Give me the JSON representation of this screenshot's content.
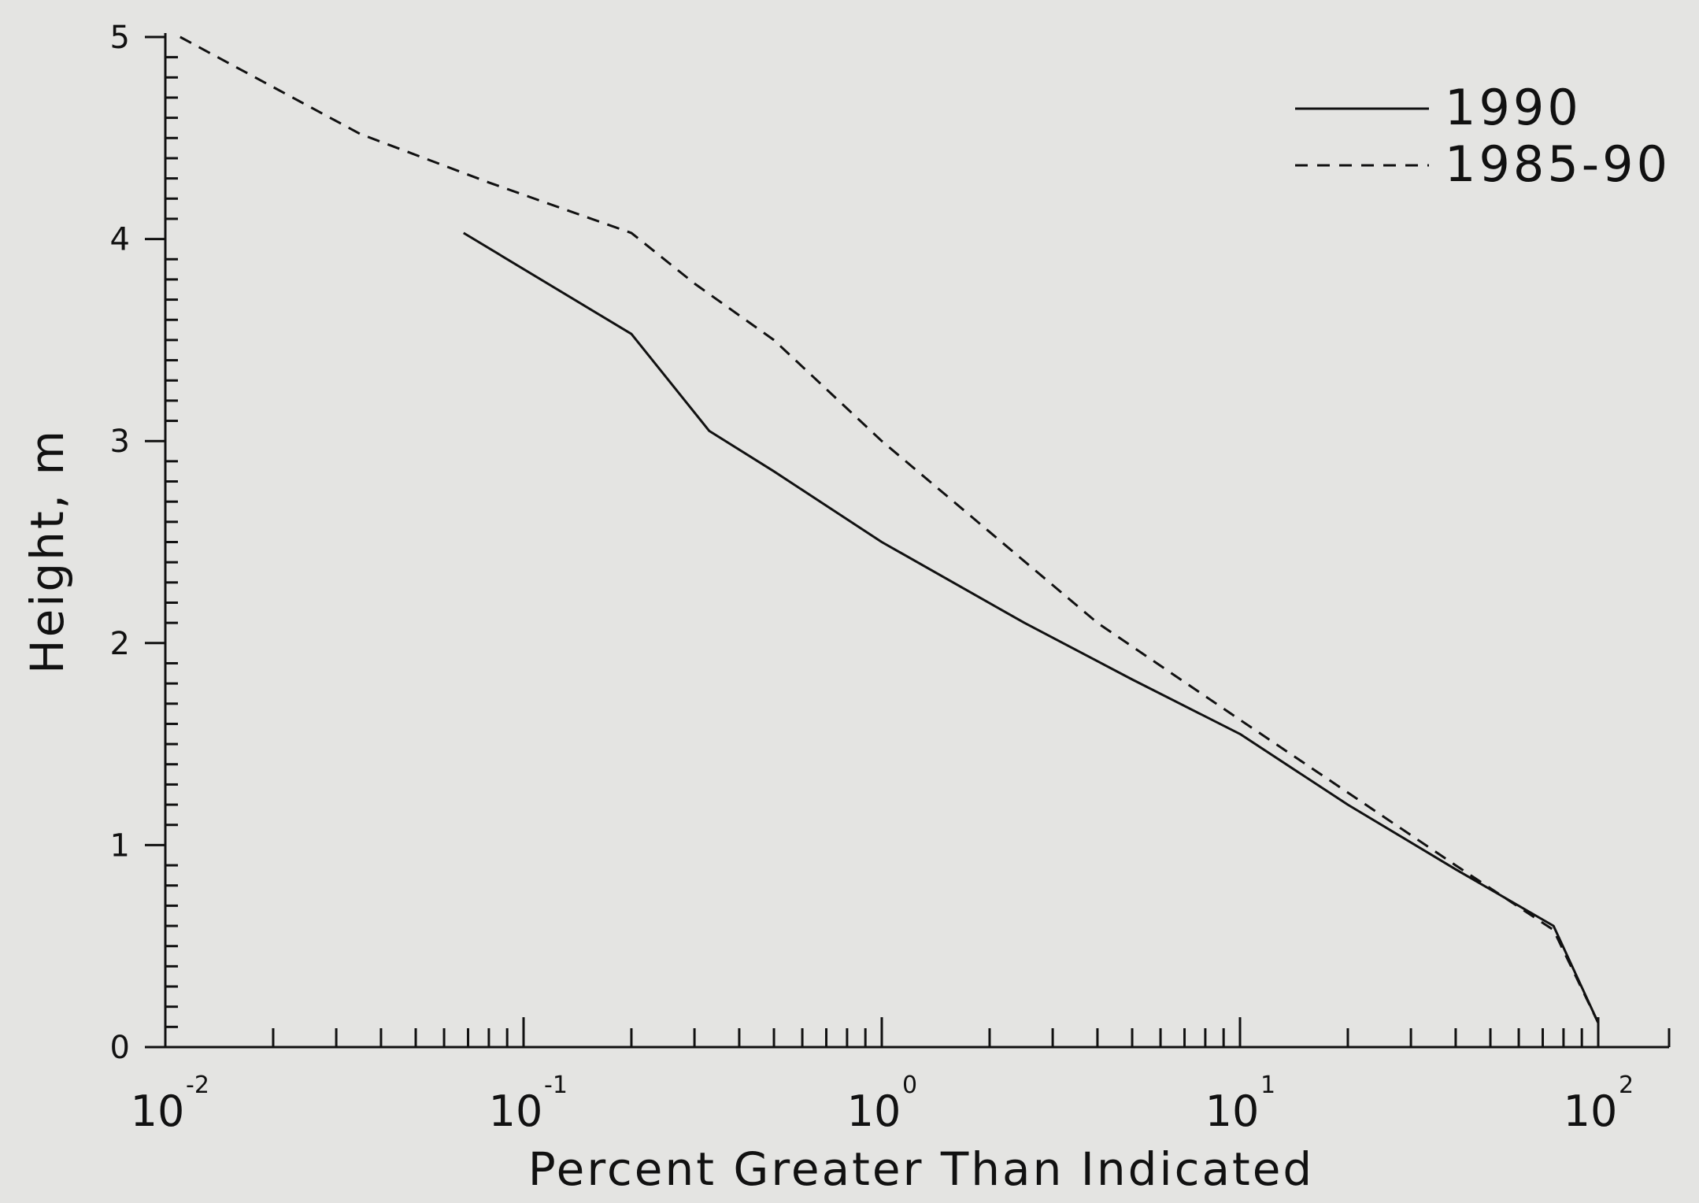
{
  "chart_data": {
    "type": "line",
    "title": "",
    "xlabel": "Percent Greater Than Indicated",
    "ylabel": "Height, m",
    "xscale": "log",
    "xlim": [
      0.01,
      100
    ],
    "ylim": [
      0,
      5
    ],
    "yticks": [
      {
        "value": 0,
        "label": "0"
      },
      {
        "value": 1,
        "label": "1"
      },
      {
        "value": 2,
        "label": "2"
      },
      {
        "value": 3,
        "label": "3"
      },
      {
        "value": 4,
        "label": "4"
      },
      {
        "value": 5,
        "label": "5"
      }
    ],
    "xticks": [
      {
        "value": 0.01,
        "base": "10",
        "exponent": "-2"
      },
      {
        "value": 0.1,
        "base": "10",
        "exponent": "-1"
      },
      {
        "value": 1,
        "base": "10",
        "exponent": "0"
      },
      {
        "value": 10,
        "base": "10",
        "exponent": "1"
      },
      {
        "value": 100,
        "base": "10",
        "exponent": "2"
      }
    ],
    "grid": false,
    "legend": "top-right",
    "series": [
      {
        "name": "1990",
        "style": "solid",
        "color": "#111111",
        "points": [
          [
            0.068,
            4.03
          ],
          [
            0.2,
            3.53
          ],
          [
            0.33,
            3.05
          ],
          [
            0.5,
            2.85
          ],
          [
            1.0,
            2.5
          ],
          [
            2.5,
            2.1
          ],
          [
            5.0,
            1.82
          ],
          [
            10.0,
            1.55
          ],
          [
            20.0,
            1.2
          ],
          [
            40.0,
            0.88
          ],
          [
            75.0,
            0.6
          ],
          [
            100.0,
            0.12
          ]
        ]
      },
      {
        "name": "1985-90",
        "style": "dashed",
        "color": "#111111",
        "points": [
          [
            0.011,
            5.0
          ],
          [
            0.035,
            4.52
          ],
          [
            0.08,
            4.28
          ],
          [
            0.2,
            4.03
          ],
          [
            0.3,
            3.78
          ],
          [
            0.5,
            3.5
          ],
          [
            1.0,
            3.0
          ],
          [
            2.0,
            2.55
          ],
          [
            4.0,
            2.1
          ],
          [
            10.0,
            1.62
          ],
          [
            20.0,
            1.26
          ],
          [
            40.0,
            0.9
          ],
          [
            75.0,
            0.58
          ],
          [
            100.0,
            0.12
          ]
        ]
      }
    ]
  }
}
